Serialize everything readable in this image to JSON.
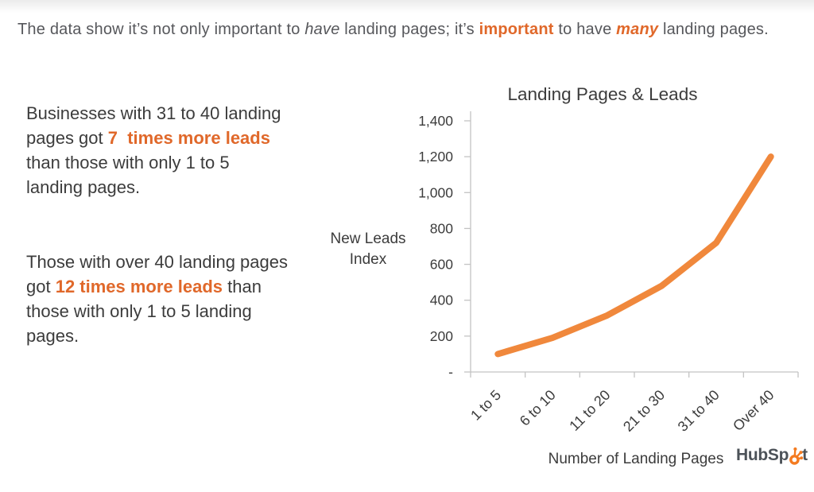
{
  "header": {
    "segments": [
      {
        "t": "The data show it’s not only important to ",
        "s": "plain"
      },
      {
        "t": "have",
        "s": "italic"
      },
      {
        "t": " landing pages; it’s ",
        "s": "plain"
      },
      {
        "t": "important",
        "s": "orange-bold"
      },
      {
        "t": " to have ",
        "s": "plain"
      },
      {
        "t": "many",
        "s": "orange-bold-italic"
      },
      {
        "t": " landing pages.",
        "s": "plain"
      }
    ]
  },
  "callouts": [
    {
      "segments": [
        {
          "t": "Businesses with 31 to 40 landing\npages got ",
          "s": "plain"
        },
        {
          "t": "7  times more leads",
          "s": "orange-bold"
        },
        {
          "t": "\nthan those with only 1 to 5\nlanding pages.",
          "s": "plain"
        }
      ]
    },
    {
      "segments": [
        {
          "t": "Those with over 40 landing pages\ngot ",
          "s": "plain"
        },
        {
          "t": "12 times more leads",
          "s": "orange-bold"
        },
        {
          "t": " than\nthose with only 1 to 5 landing\npages.",
          "s": "plain"
        }
      ]
    }
  ],
  "chart_data": {
    "type": "line",
    "title": "Landing Pages & Leads",
    "categories": [
      "1 to 5",
      "6 to 10",
      "11 to 20",
      "21 to 30",
      "31 to 40",
      "Over 40"
    ],
    "values": [
      100,
      190,
      315,
      480,
      720,
      1200
    ],
    "xlabel": "Number of Landing Pages",
    "ylabel": "New Leads Index",
    "ylabel_lines": [
      "New Leads",
      "Index"
    ],
    "ylim": [
      0,
      1400
    ],
    "ytick_step": 200,
    "ytick_labels": [
      "-",
      "200",
      "400",
      "600",
      "800",
      "1,000",
      "1,200",
      "1,400"
    ],
    "grid": false,
    "legend": "none",
    "line_color": "#F0883C",
    "axis_color": "#C3C3C3"
  },
  "logo": {
    "pre": "HubSp",
    "post": "t",
    "sprocket_color": "#F47B20",
    "text_color": "#4C5258"
  },
  "colors": {
    "accent_orange_text": "#E0682A",
    "accent_orange_line": "#F0883C",
    "body_text": "#3C3C3C",
    "header_text": "#56575B"
  }
}
